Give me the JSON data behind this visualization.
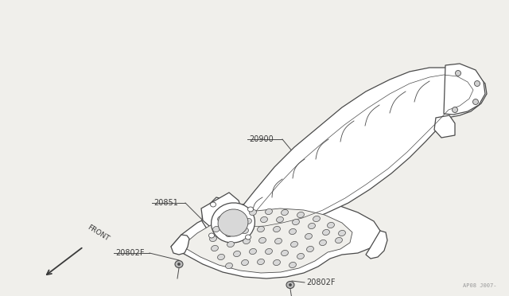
{
  "bg_color": "#f0efeb",
  "line_color": "#4a4a4a",
  "text_color": "#3a3a3a",
  "watermark": "AP08 J007-",
  "front_label": "FRONT",
  "label_20900": "20900",
  "label_20851": "20851",
  "label_20802F": "20802F",
  "font_size_labels": 7.0,
  "font_size_watermark": 5.0,
  "font_size_front": 6.5
}
